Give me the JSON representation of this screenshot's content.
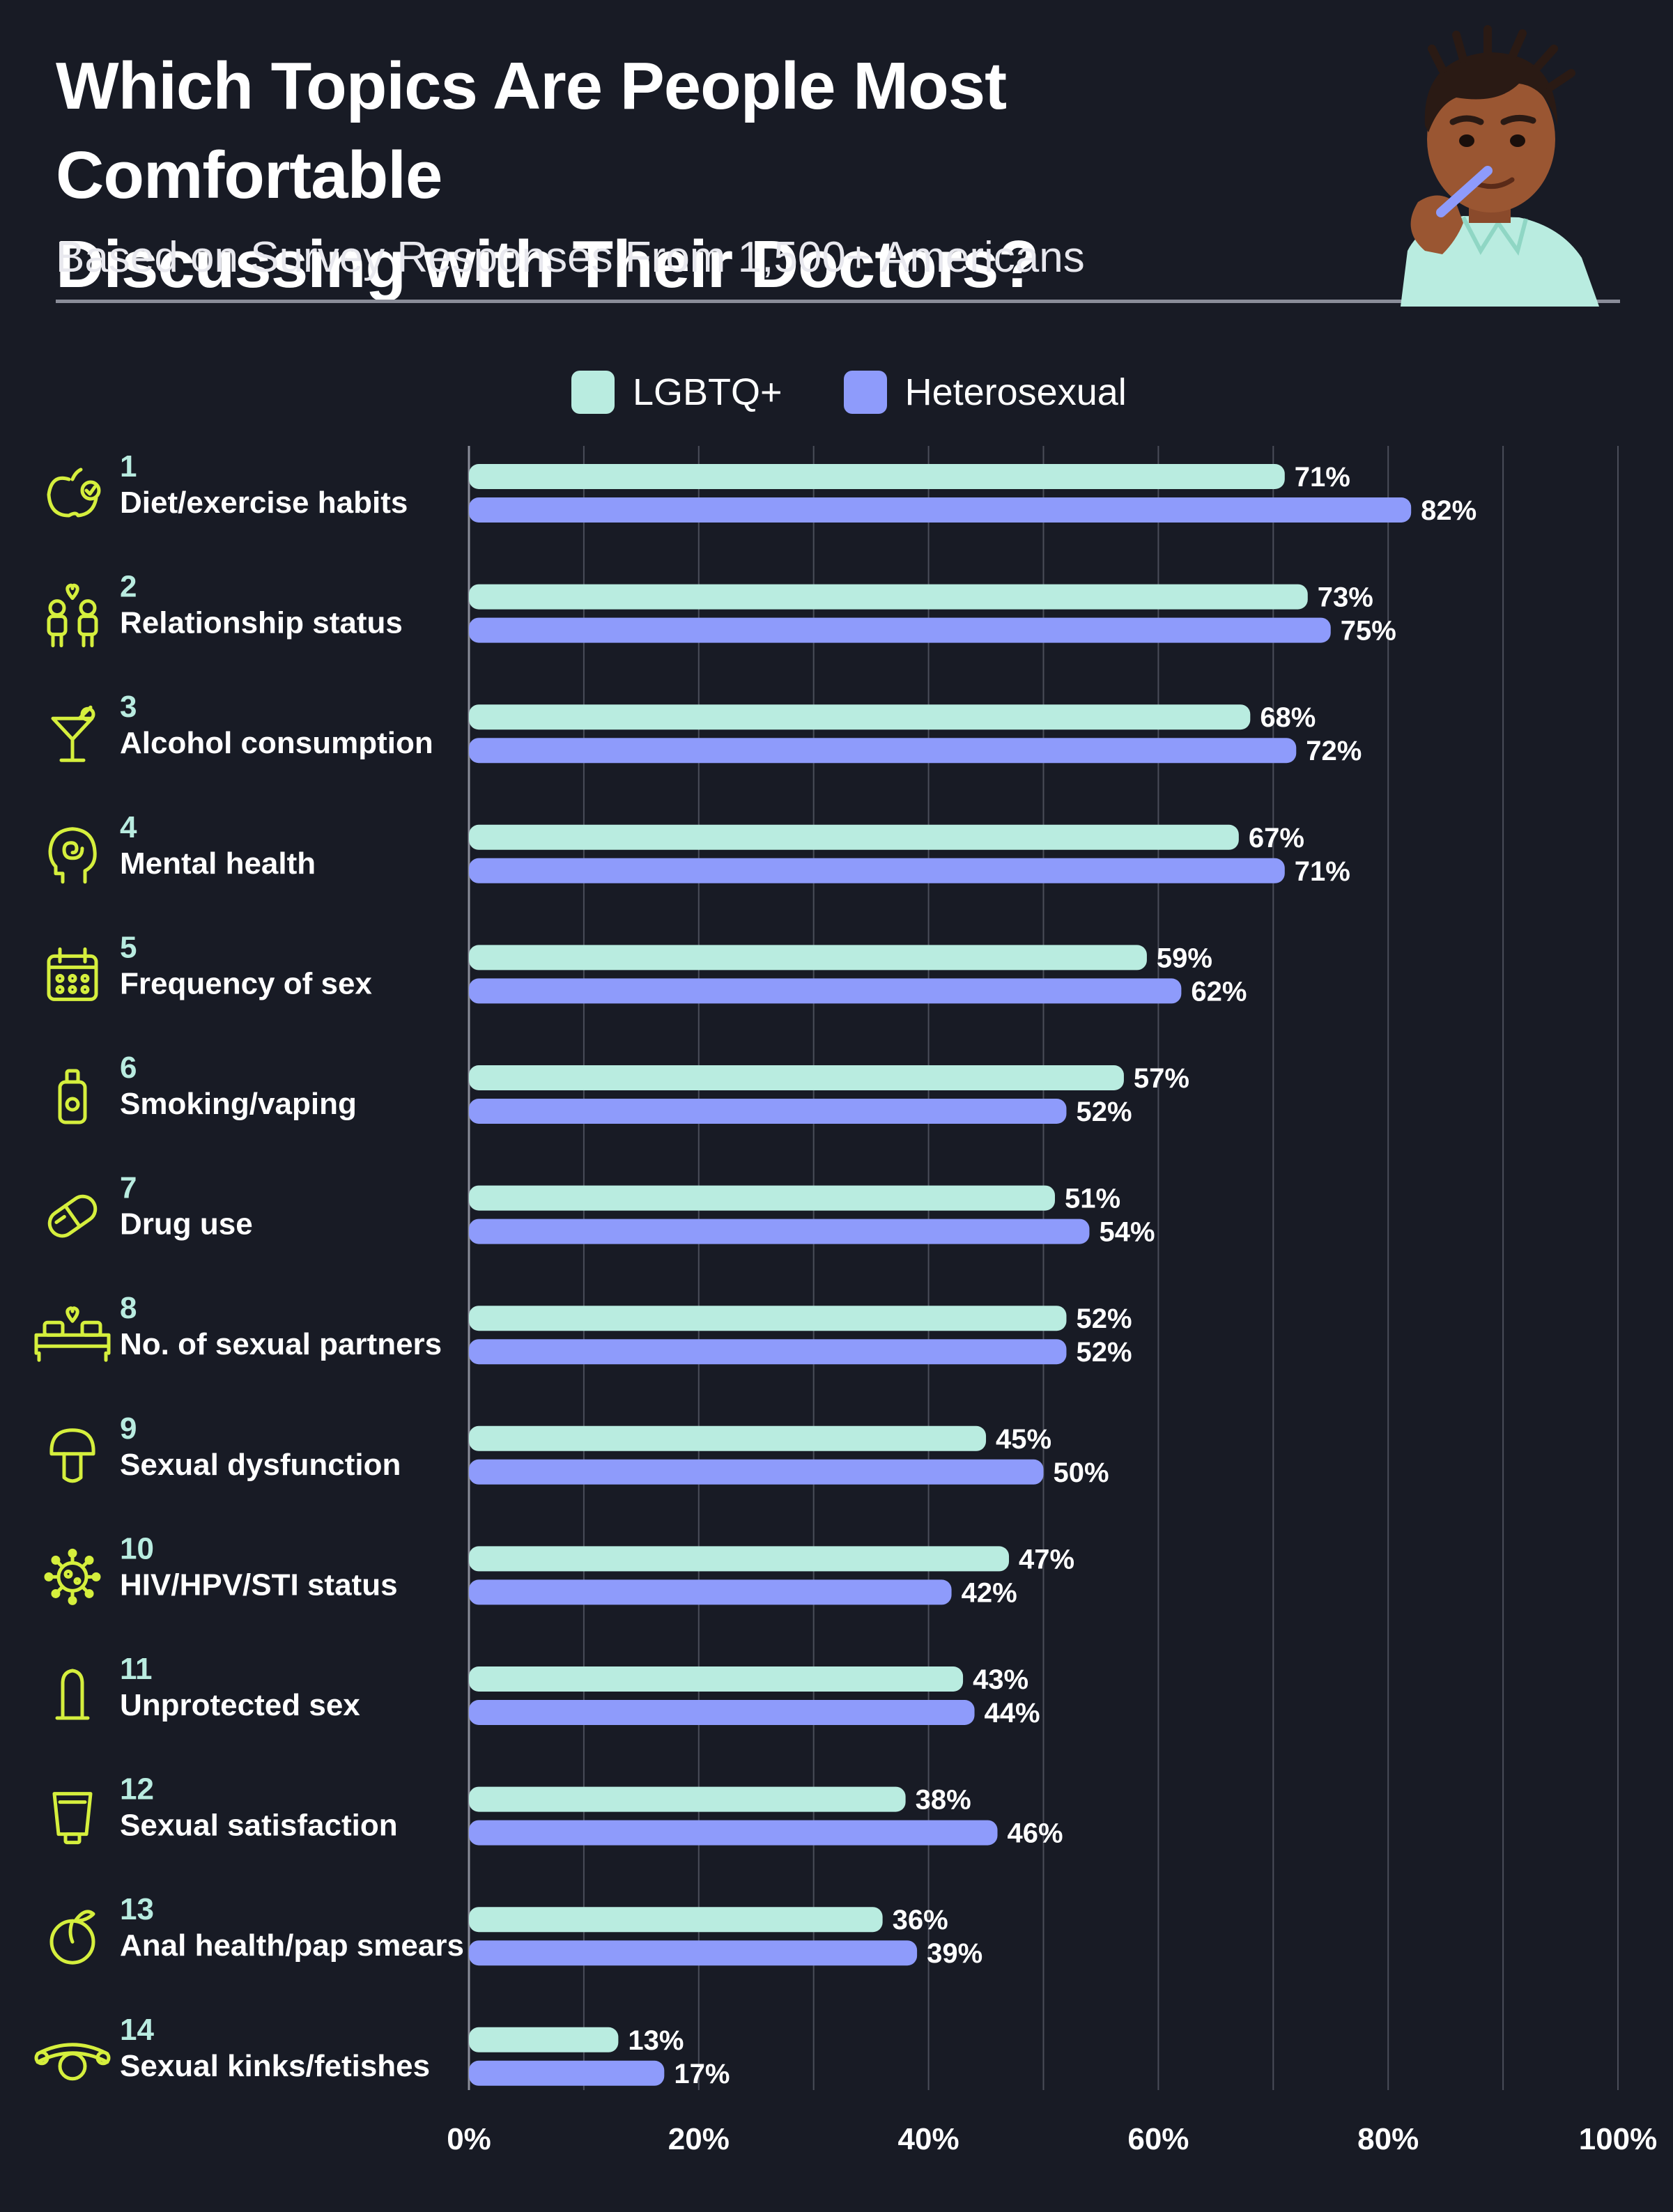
{
  "header": {
    "title_line1": "Which Topics Are People Most Comfortable",
    "title_line2": "Discussing with Their Doctors?",
    "subtitle": "Based on Survey Responses From 1,500+ Americans"
  },
  "colors": {
    "background": "#181b25",
    "lgbtq": "#b9ece0",
    "heterosexual": "#8e9bfb",
    "icon": "#d5ef3d",
    "rank": "#b9ece0",
    "grid": "#4a4d59"
  },
  "chart_data": {
    "type": "bar",
    "orientation": "horizontal",
    "title": "Which Topics Are People Most Comfortable Discussing with Their Doctors?",
    "subtitle": "Based on Survey Responses From 1,500+ Americans",
    "xlim": [
      0,
      100
    ],
    "x_ticks": [
      "0%",
      "20%",
      "40%",
      "60%",
      "80%",
      "100%"
    ],
    "grid": true,
    "legend_position": "top-center",
    "series": [
      {
        "name": "LGBTQ+",
        "values": [
          71,
          73,
          68,
          67,
          59,
          57,
          51,
          52,
          45,
          47,
          43,
          38,
          36,
          13
        ]
      },
      {
        "name": "Heterosexual",
        "values": [
          82,
          75,
          72,
          71,
          62,
          52,
          54,
          52,
          50,
          42,
          44,
          46,
          39,
          17
        ]
      }
    ],
    "categories": [
      {
        "rank": "1",
        "label": "Diet/exercise habits",
        "icon": "apple-check-icon"
      },
      {
        "rank": "2",
        "label": "Relationship status",
        "icon": "couple-heart-icon"
      },
      {
        "rank": "3",
        "label": "Alcohol consumption",
        "icon": "cocktail-icon"
      },
      {
        "rank": "4",
        "label": "Mental health",
        "icon": "head-spiral-icon"
      },
      {
        "rank": "5",
        "label": "Frequency of sex",
        "icon": "calendar-icon"
      },
      {
        "rank": "6",
        "label": "Smoking/vaping",
        "icon": "vape-icon"
      },
      {
        "rank": "7",
        "label": "Drug use",
        "icon": "pill-icon"
      },
      {
        "rank": "8",
        "label": "No. of sexual partners",
        "icon": "bed-heart-icon"
      },
      {
        "rank": "9",
        "label": "Sexual dysfunction",
        "icon": "mushroom-icon"
      },
      {
        "rank": "10",
        "label": "HIV/HPV/STI status",
        "icon": "virus-icon"
      },
      {
        "rank": "11",
        "label": "Unprotected sex",
        "icon": "condom-icon"
      },
      {
        "rank": "12",
        "label": "Sexual satisfaction",
        "icon": "lotion-tube-icon"
      },
      {
        "rank": "13",
        "label": "Anal health/pap smears",
        "icon": "peach-icon"
      },
      {
        "rank": "14",
        "label": "Sexual kinks/fetishes",
        "icon": "ball-gag-icon"
      }
    ]
  }
}
